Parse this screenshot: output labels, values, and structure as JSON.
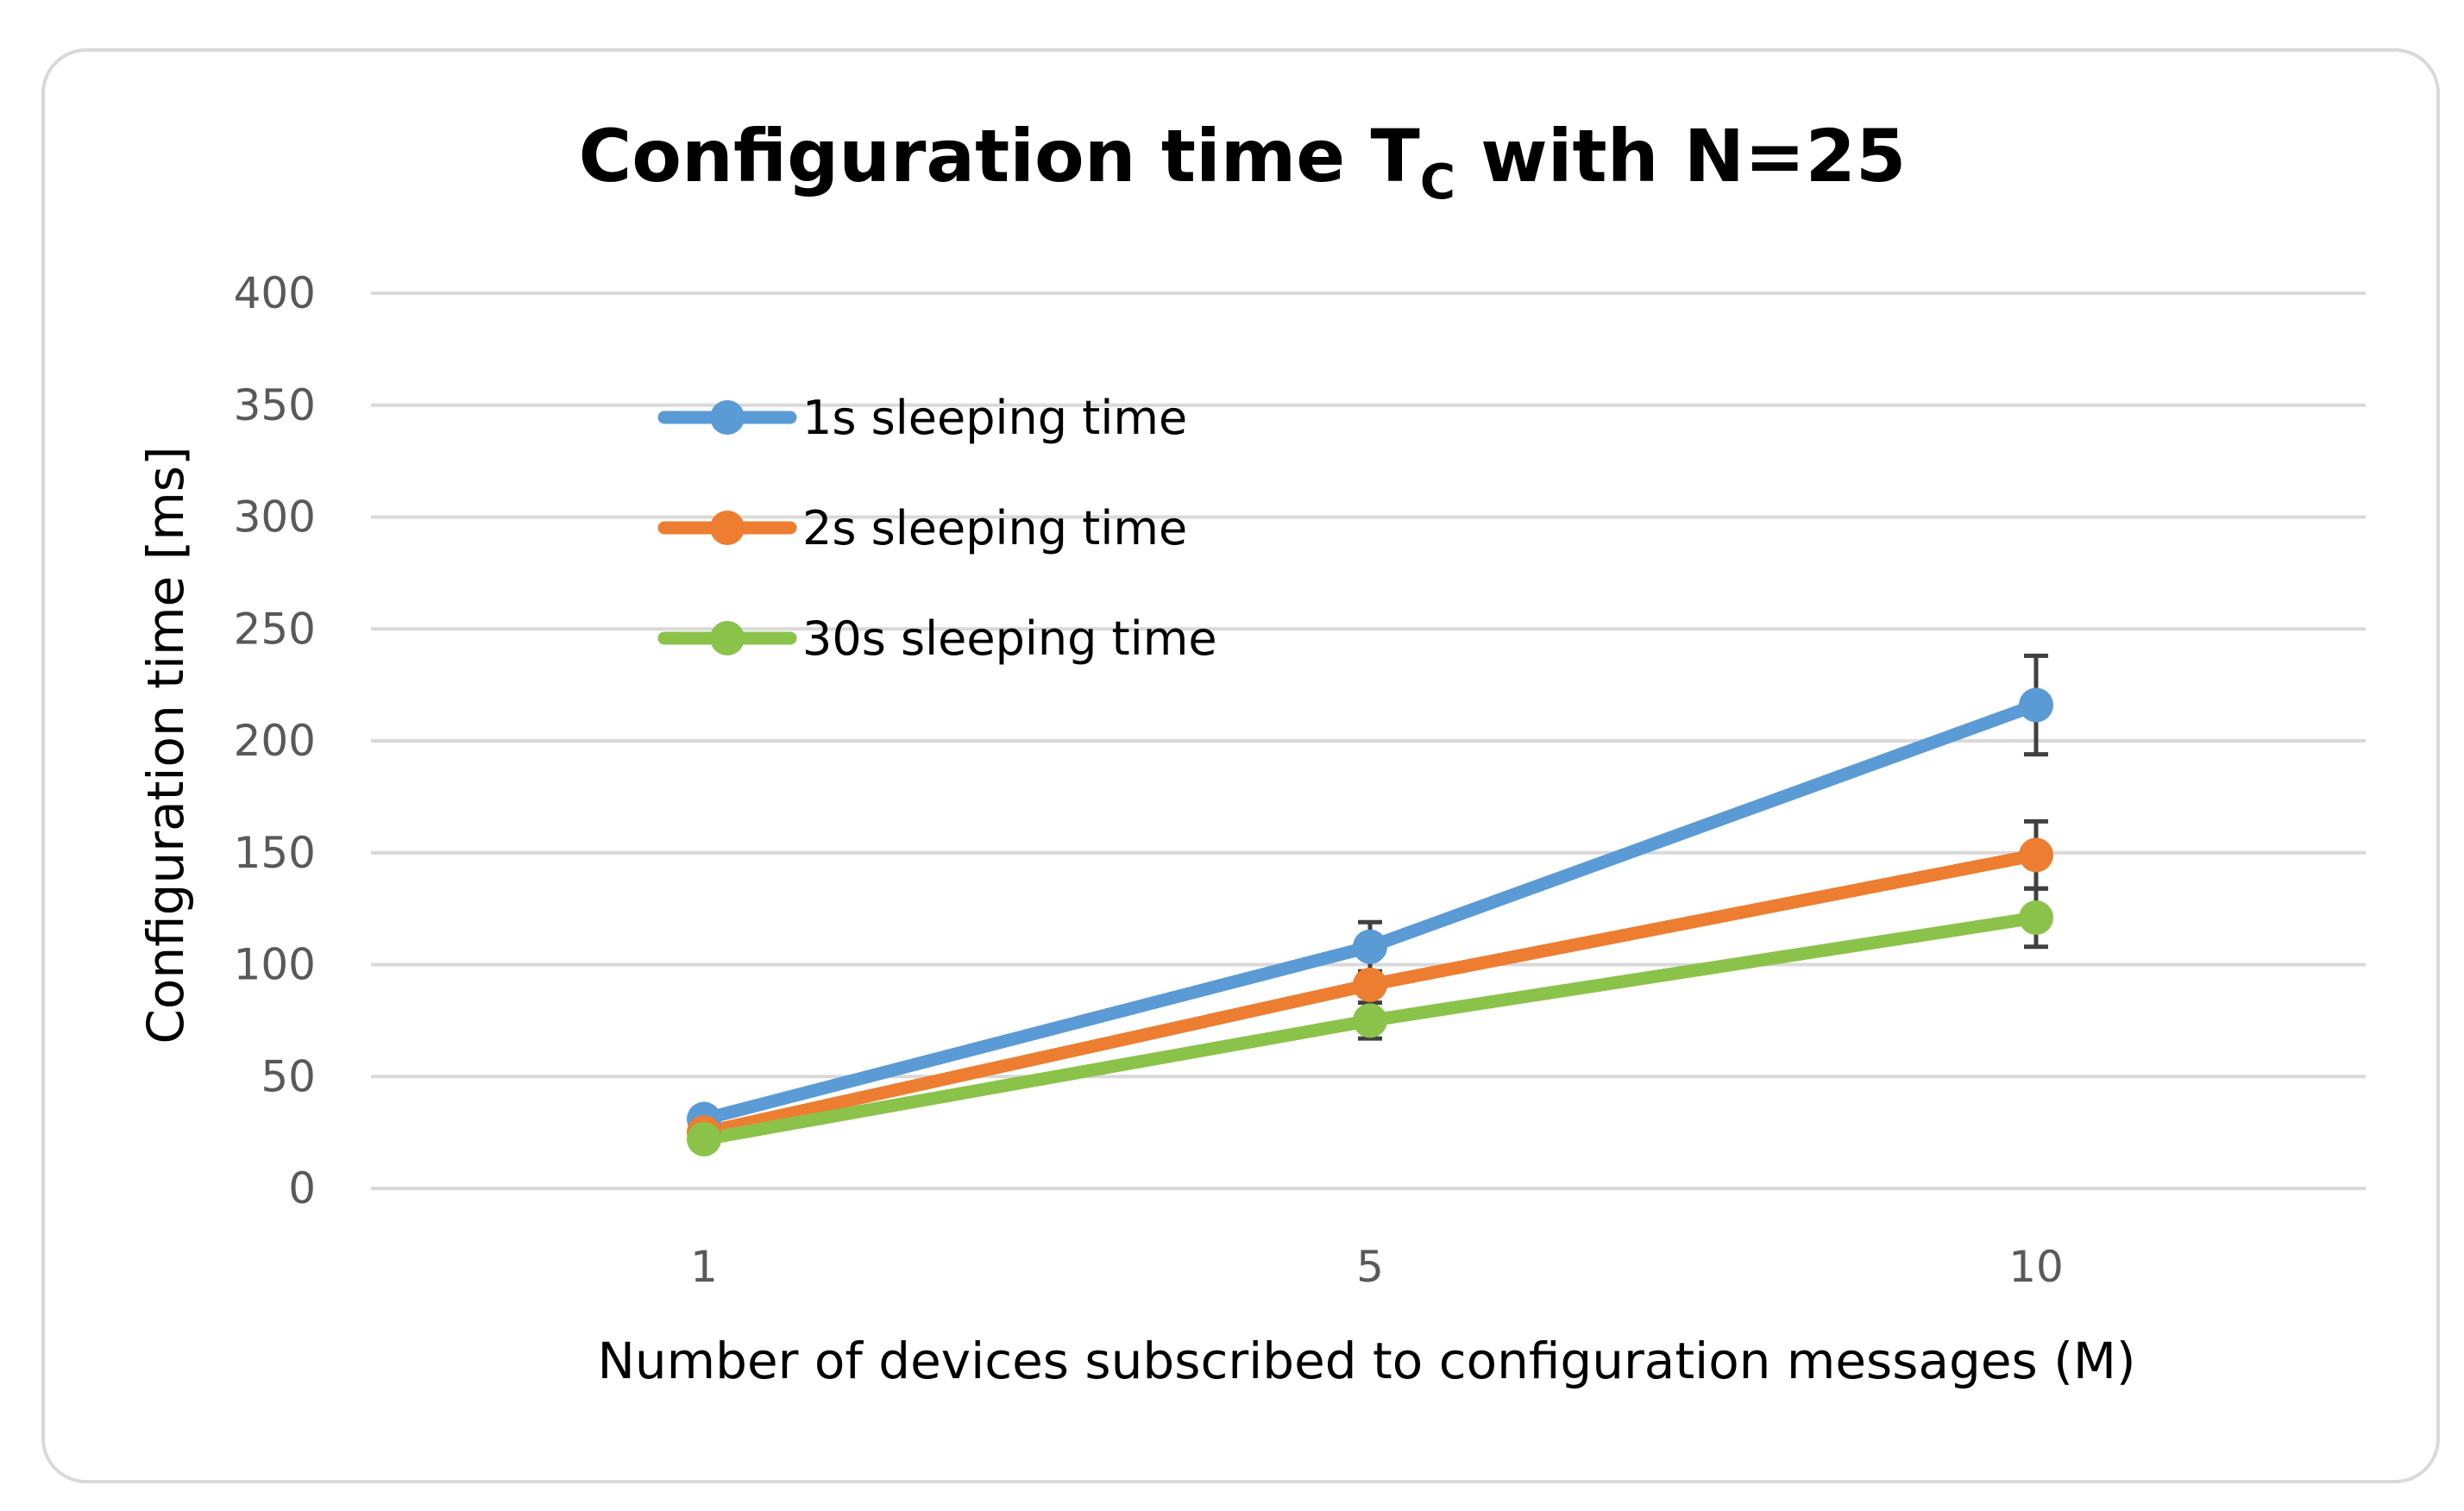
{
  "chart_data": {
    "type": "line",
    "title": {
      "main": "Configuration time T",
      "subscript": "C",
      "suffix": " with N=25"
    },
    "xlabel": "Number of devices subscribed to configuration messages (M)",
    "ylabel": "Configuration time [ms]",
    "categories": [
      "1",
      "5",
      "10"
    ],
    "ylim": [
      0,
      400
    ],
    "yticks": [
      "0",
      "50",
      "100",
      "150",
      "200",
      "250",
      "300",
      "350",
      "400"
    ],
    "grid": true,
    "legend_position": "top-left",
    "series": [
      {
        "name": "1s sleeping time",
        "color": "#5b9bd5",
        "values": [
          31,
          108,
          216
        ],
        "errors": [
          null,
          11,
          22
        ]
      },
      {
        "name": "2s sleeping time",
        "color": "#ed7d31",
        "values": [
          25,
          91,
          149
        ],
        "errors": [
          null,
          null,
          15
        ]
      },
      {
        "name": "30s sleeping time",
        "color": "#8bc34a",
        "values": [
          22,
          75,
          121
        ],
        "errors": [
          null,
          8,
          13
        ]
      }
    ]
  }
}
